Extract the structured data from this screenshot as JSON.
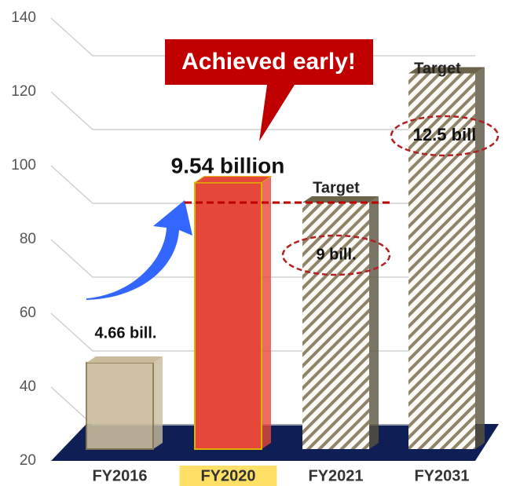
{
  "chart_data": {
    "type": "bar",
    "categories": [
      "FY2016",
      "FY2020",
      "FY2021",
      "FY2031"
    ],
    "values": [
      46.6,
      95.4,
      90,
      125
    ],
    "value_labels": [
      "4.66 bill.",
      "9.54 billion",
      "9 bill.",
      "12.5 bill"
    ],
    "colors": [
      "#c9bb9c",
      "#e5473b",
      "#8f8468",
      "#8f8468"
    ],
    "hatched": [
      false,
      false,
      true,
      true
    ],
    "highlight_category": 1,
    "ylim": [
      20,
      140
    ],
    "yticks": [
      20,
      40,
      60,
      80,
      100,
      120,
      140
    ],
    "grid": true,
    "annotations": {
      "callout": "Achieved early!",
      "target": [
        "Target",
        "Target"
      ]
    }
  }
}
